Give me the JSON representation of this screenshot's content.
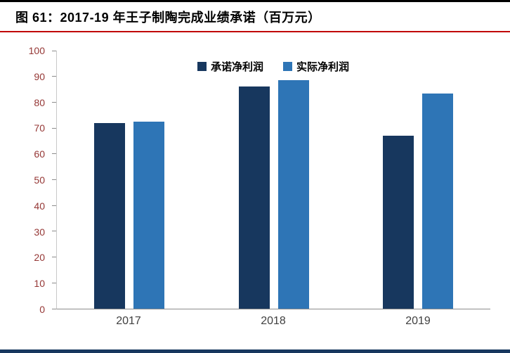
{
  "header": {
    "title": "图 61：2017-19 年王子制陶完成业绩承诺（百万元）"
  },
  "colors": {
    "series1": "#17375E",
    "series2": "#2E75B6",
    "rule_top": "#000000",
    "rule_red": "#C00000",
    "rule_bottom": "#17375E",
    "y_tick_label": "#953735",
    "x_tick_label": "#404040"
  },
  "chart_data": {
    "type": "bar",
    "title": "2017-19 年王子制陶完成业绩承诺（百万元）",
    "categories": [
      "2017",
      "2018",
      "2019"
    ],
    "series": [
      {
        "name": "承诺净利润",
        "values": [
          72,
          86,
          67
        ]
      },
      {
        "name": "实际净利润",
        "values": [
          72.5,
          88.5,
          83.5
        ]
      }
    ],
    "xlabel": "",
    "ylabel": "",
    "ylim": [
      0,
      100
    ],
    "yticks": [
      0,
      10,
      20,
      30,
      40,
      50,
      60,
      70,
      80,
      90,
      100
    ],
    "grid": false,
    "legend_position": "top-center"
  }
}
